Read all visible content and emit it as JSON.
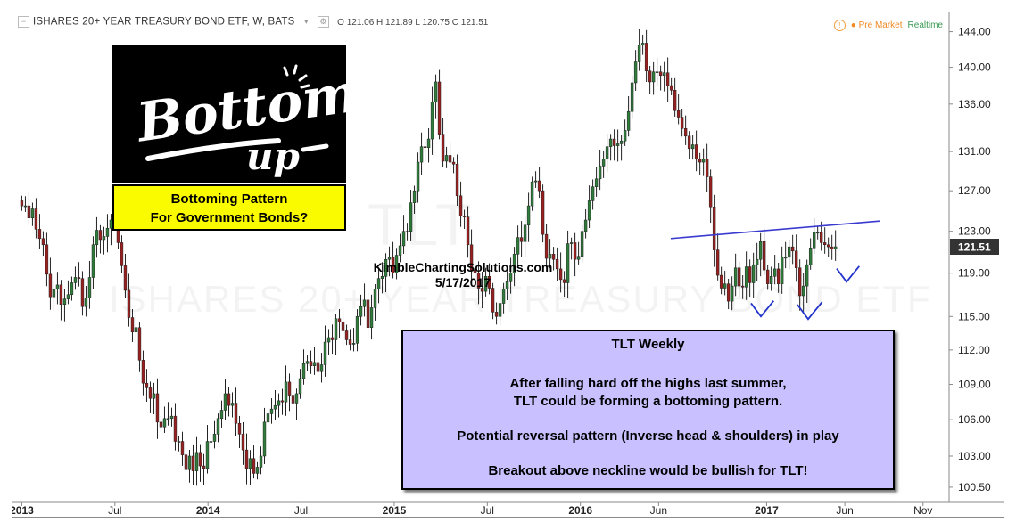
{
  "header": {
    "symbol": "ISHARES 20+ YEAR TREASURY BOND ETF, W, BATS",
    "ohlc": "O 121.06 H 121.89 L 120.75 C 121.51",
    "pre_market": "● Pre Market",
    "realtime": "Realtime"
  },
  "watermark": {
    "ticker": "TLT",
    "name": "ISHARES 20+ YEAR TREASURY BOND ETF"
  },
  "logo": {
    "line1": "BottomS",
    "line2": "up"
  },
  "callout": {
    "line1": "Bottoming Pattern",
    "line2": "For Government Bonds?"
  },
  "attribution": {
    "site": "KimbleChartingSolutions.com",
    "date": "5/17/2017"
  },
  "info": {
    "title": "TLT Weekly",
    "line1": "After falling hard off the highs last summer,",
    "line2": "TLT could be forming a bottoming pattern.",
    "line3": "Potential reversal pattern (Inverse head & shoulders) in play",
    "line4": "Breakout above neckline would be bullish for TLT!"
  },
  "colors": {
    "up": "#2e7d3a",
    "down": "#9a1f1f",
    "neckline": "#3a3ad0",
    "checkmarks": "#2233cc",
    "price_tag": "#333333",
    "info_box": "#c8c0ff",
    "callout_box": "#fbfb00"
  },
  "chart_data": {
    "type": "candlestick",
    "title": "ISHARES 20+ YEAR TREASURY BOND ETF, W, BATS",
    "y_ticks": [
      "144.00",
      "140.00",
      "136.00",
      "131.00",
      "127.00",
      "123.00",
      "119.00",
      "115.00",
      "112.00",
      "109.00",
      "106.00",
      "103.00",
      "100.50"
    ],
    "y_tick_values": [
      144,
      140,
      136,
      131,
      127,
      123,
      119,
      115,
      112,
      109,
      106,
      103,
      100.5
    ],
    "ylim": [
      99.3,
      146.2
    ],
    "y_scale": "log",
    "x_ticks": [
      {
        "label": "2013",
        "t": 0.0,
        "year": true
      },
      {
        "label": "Jul",
        "t": 0.5,
        "year": false
      },
      {
        "label": "2014",
        "t": 1.0,
        "year": true
      },
      {
        "label": "Jul",
        "t": 1.5,
        "year": false
      },
      {
        "label": "2015",
        "t": 2.0,
        "year": true
      },
      {
        "label": "Jul",
        "t": 2.5,
        "year": false
      },
      {
        "label": "2016",
        "t": 3.0,
        "year": true
      },
      {
        "label": "Jun",
        "t": 3.42,
        "year": false
      },
      {
        "label": "2017",
        "t": 4.0,
        "year": true
      },
      {
        "label": "Jun",
        "t": 4.42,
        "year": false
      },
      {
        "label": "Nov",
        "t": 4.84,
        "year": false
      }
    ],
    "xlim": [
      -0.05,
      4.98
    ],
    "last_price": "121.51",
    "last_value": 121.51,
    "closes": [
      125.5,
      125.5,
      124.3,
      125.2,
      123.2,
      122.3,
      121.7,
      118.9,
      116.8,
      117.5,
      117.9,
      116.1,
      116.6,
      117.0,
      118.1,
      118.6,
      118.5,
      115.9,
      116.7,
      118.6,
      121.7,
      123.1,
      122.2,
      122.5,
      123.3,
      124.1,
      123.8,
      121.9,
      119.7,
      117.4,
      114.9,
      113.6,
      114.0,
      111.1,
      109.1,
      108.7,
      107.8,
      108.2,
      105.8,
      105.4,
      106.1,
      106.1,
      106.3,
      104.2,
      104.2,
      103.1,
      101.9,
      103.0,
      101.8,
      103.3,
      102.2,
      102.0,
      104.2,
      104.2,
      104.8,
      106.1,
      106.8,
      108.2,
      107.2,
      107.4,
      105.7,
      104.8,
      103.5,
      102.0,
      102.8,
      101.6,
      102.1,
      103.0,
      105.8,
      106.5,
      106.9,
      107.2,
      107.6,
      107.5,
      109.2,
      108.0,
      107.4,
      108.2,
      109.5,
      110.8,
      111.0,
      110.6,
      110.9,
      110.1,
      110.7,
      112.7,
      113.1,
      112.9,
      114.8,
      114.5,
      113.7,
      112.9,
      112.5,
      112.6,
      115.0,
      115.9,
      116.5,
      114.0,
      115.8,
      117.5,
      118.5,
      118.7,
      120.3,
      120.5,
      119.0,
      120.7,
      121.6,
      123.0,
      123.0,
      125.8,
      127.0,
      129.9,
      131.5,
      131.4,
      132.3,
      136.2,
      138.4,
      132.8,
      130.0,
      130.6,
      129.9,
      129.7,
      126.5,
      124.5,
      124.4,
      121.7,
      119.3,
      119.0,
      117.6,
      117.3,
      118.7,
      117.6,
      115.4,
      115.0,
      116.2,
      117.5,
      118.2,
      119.0,
      120.8,
      122.4,
      122.0,
      123.6,
      125.5,
      127.9,
      128.0,
      127.0,
      122.7,
      120.4,
      120.8,
      120.3,
      119.4,
      118.4,
      118.1,
      121.8,
      121.9,
      120.3,
      120.6,
      123.0,
      124.1,
      126.0,
      127.4,
      128.2,
      129.5,
      130.2,
      131.5,
      132.3,
      131.6,
      131.8,
      132.1,
      133.2,
      135.2,
      138.3,
      140.6,
      142.5,
      142.7,
      139.6,
      138.4,
      139.5,
      139.5,
      139.1,
      139.4,
      138.0,
      137.5,
      135.3,
      134.6,
      133.4,
      132.6,
      131.3,
      131.7,
      130.2,
      129.9,
      130.2,
      128.4,
      125.4,
      121.2,
      118.8,
      117.6,
      118.0,
      116.4,
      117.8,
      119.5,
      117.8,
      117.7,
      119.6,
      118.1,
      119.8,
      120.3,
      122.0,
      119.3,
      118.0,
      118.7,
      119.4,
      118.0,
      120.5,
      120.5,
      121.5,
      121.1,
      119.5,
      116.9,
      117.8,
      119.8,
      121.4,
      122.9,
      122.9,
      121.9,
      121.7,
      121.5,
      121.3,
      121.51
    ]
  }
}
